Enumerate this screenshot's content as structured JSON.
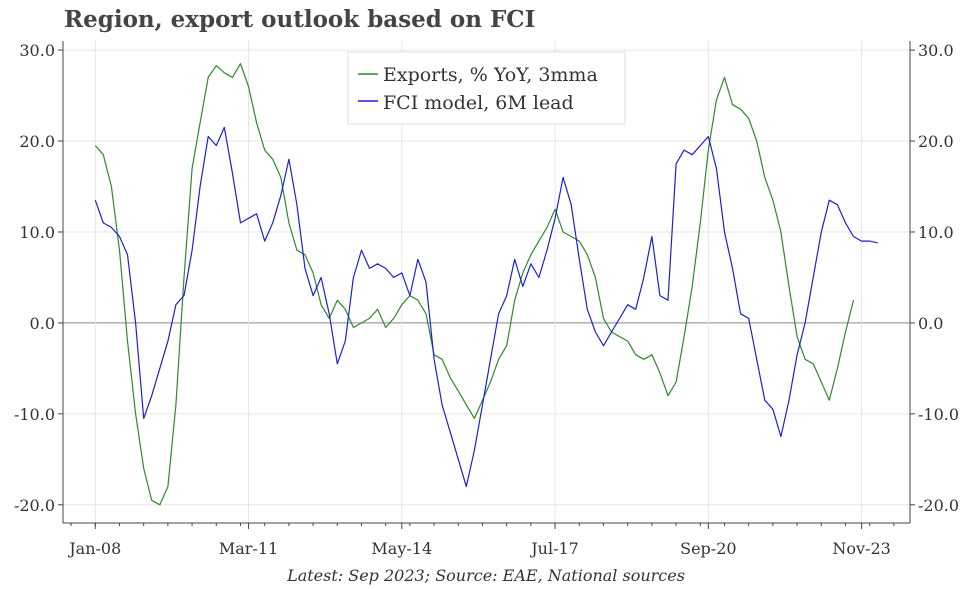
{
  "title": "Region, export outlook based on FCI",
  "footer": "Latest: Sep 2023; Source: EAE, National sources",
  "colors": {
    "exports": "#2e8b2e",
    "fci": "#1f1fd6",
    "grid": "#e6e6e6",
    "zero": "#888888"
  },
  "chart_data": {
    "type": "line",
    "title": "Region, export outlook based on FCI",
    "xlabel": "",
    "ylabel": "",
    "ylim": [
      -22,
      31
    ],
    "yticks": [
      30,
      20,
      10,
      0,
      -10,
      -20
    ],
    "ytick_labels": [
      "30.0",
      "20.0",
      "10.0",
      "0.0",
      "-10.0",
      "-20.0"
    ],
    "xticks": [
      "2008-01",
      "2011-03",
      "2014-05",
      "2017-07",
      "2020-09",
      "2023-11"
    ],
    "xtick_labels": [
      "Jan-08",
      "Mar-11",
      "May-14",
      "Jul-17",
      "Sep-20",
      "Nov-23"
    ],
    "xlim": [
      "2007-05",
      "2024-11"
    ],
    "grid": true,
    "legend": "top-center",
    "series": [
      {
        "name": "Exports, % YoY, 3mma",
        "color": "#2e8b2e",
        "points": [
          [
            "2008-01",
            19.5
          ],
          [
            "2008-03",
            18.5
          ],
          [
            "2008-05",
            15.0
          ],
          [
            "2008-07",
            8.0
          ],
          [
            "2008-09",
            -2.0
          ],
          [
            "2008-11",
            -10.0
          ],
          [
            "2009-01",
            -16.0
          ],
          [
            "2009-03",
            -19.5
          ],
          [
            "2009-05",
            -20.0
          ],
          [
            "2009-07",
            -18.0
          ],
          [
            "2009-09",
            -9.0
          ],
          [
            "2009-11",
            5.0
          ],
          [
            "2010-01",
            17.0
          ],
          [
            "2010-03",
            22.0
          ],
          [
            "2010-05",
            27.0
          ],
          [
            "2010-07",
            28.3
          ],
          [
            "2010-09",
            27.5
          ],
          [
            "2010-11",
            27.0
          ],
          [
            "2011-01",
            28.5
          ],
          [
            "2011-03",
            26.0
          ],
          [
            "2011-05",
            22.0
          ],
          [
            "2011-07",
            19.0
          ],
          [
            "2011-09",
            18.0
          ],
          [
            "2011-11",
            16.0
          ],
          [
            "2012-01",
            11.0
          ],
          [
            "2012-03",
            8.0
          ],
          [
            "2012-05",
            7.5
          ],
          [
            "2012-07",
            5.5
          ],
          [
            "2012-09",
            2.0
          ],
          [
            "2012-11",
            0.5
          ],
          [
            "2013-01",
            2.5
          ],
          [
            "2013-03",
            1.5
          ],
          [
            "2013-05",
            -0.5
          ],
          [
            "2013-07",
            0.0
          ],
          [
            "2013-09",
            0.5
          ],
          [
            "2013-11",
            1.5
          ],
          [
            "2014-01",
            -0.5
          ],
          [
            "2014-03",
            0.5
          ],
          [
            "2014-05",
            2.0
          ],
          [
            "2014-07",
            3.0
          ],
          [
            "2014-09",
            2.5
          ],
          [
            "2014-11",
            1.0
          ],
          [
            "2015-01",
            -3.5
          ],
          [
            "2015-03",
            -4.0
          ],
          [
            "2015-05",
            -6.0
          ],
          [
            "2015-07",
            -7.5
          ],
          [
            "2015-09",
            -9.0
          ],
          [
            "2015-11",
            -10.5
          ],
          [
            "2016-01",
            -8.5
          ],
          [
            "2016-03",
            -6.5
          ],
          [
            "2016-05",
            -4.0
          ],
          [
            "2016-07",
            -2.5
          ],
          [
            "2016-09",
            2.5
          ],
          [
            "2016-11",
            5.5
          ],
          [
            "2017-01",
            7.5
          ],
          [
            "2017-03",
            9.0
          ],
          [
            "2017-05",
            10.5
          ],
          [
            "2017-07",
            12.5
          ],
          [
            "2017-09",
            10.0
          ],
          [
            "2017-11",
            9.5
          ],
          [
            "2018-01",
            9.0
          ],
          [
            "2018-03",
            7.5
          ],
          [
            "2018-05",
            5.0
          ],
          [
            "2018-07",
            0.5
          ],
          [
            "2018-09",
            -1.0
          ],
          [
            "2018-11",
            -1.5
          ],
          [
            "2019-01",
            -2.0
          ],
          [
            "2019-03",
            -3.5
          ],
          [
            "2019-05",
            -4.0
          ],
          [
            "2019-07",
            -3.5
          ],
          [
            "2019-09",
            -5.5
          ],
          [
            "2019-11",
            -8.0
          ],
          [
            "2020-01",
            -6.5
          ],
          [
            "2020-03",
            -1.5
          ],
          [
            "2020-05",
            4.0
          ],
          [
            "2020-07",
            11.0
          ],
          [
            "2020-09",
            19.0
          ],
          [
            "2020-11",
            24.5
          ],
          [
            "2021-01",
            27.0
          ],
          [
            "2021-03",
            24.0
          ],
          [
            "2021-05",
            23.5
          ],
          [
            "2021-07",
            22.5
          ],
          [
            "2021-09",
            20.0
          ],
          [
            "2021-11",
            16.0
          ],
          [
            "2022-01",
            13.5
          ],
          [
            "2022-03",
            10.0
          ],
          [
            "2022-05",
            4.0
          ],
          [
            "2022-07",
            -1.5
          ],
          [
            "2022-09",
            -4.0
          ],
          [
            "2022-11",
            -4.5
          ],
          [
            "2023-01",
            -6.5
          ],
          [
            "2023-03",
            -8.5
          ],
          [
            "2023-05",
            -5.0
          ],
          [
            "2023-07",
            -1.0
          ],
          [
            "2023-09",
            2.5
          ]
        ]
      },
      {
        "name": "FCI model, 6M lead",
        "color": "#1f1fd6",
        "points": [
          [
            "2008-01",
            13.5
          ],
          [
            "2008-03",
            11.0
          ],
          [
            "2008-05",
            10.5
          ],
          [
            "2008-07",
            9.5
          ],
          [
            "2008-09",
            7.5
          ],
          [
            "2008-11",
            0.0
          ],
          [
            "2009-01",
            -10.5
          ],
          [
            "2009-03",
            -8.0
          ],
          [
            "2009-05",
            -5.0
          ],
          [
            "2009-07",
            -2.0
          ],
          [
            "2009-09",
            2.0
          ],
          [
            "2009-11",
            3.0
          ],
          [
            "2010-01",
            8.0
          ],
          [
            "2010-03",
            15.0
          ],
          [
            "2010-05",
            20.5
          ],
          [
            "2010-07",
            19.5
          ],
          [
            "2010-09",
            21.5
          ],
          [
            "2010-11",
            16.5
          ],
          [
            "2011-01",
            11.0
          ],
          [
            "2011-03",
            11.5
          ],
          [
            "2011-05",
            12.0
          ],
          [
            "2011-07",
            9.0
          ],
          [
            "2011-09",
            11.0
          ],
          [
            "2011-11",
            14.0
          ],
          [
            "2012-01",
            18.0
          ],
          [
            "2012-03",
            13.0
          ],
          [
            "2012-05",
            6.0
          ],
          [
            "2012-07",
            3.0
          ],
          [
            "2012-09",
            5.0
          ],
          [
            "2012-11",
            1.0
          ],
          [
            "2013-01",
            -4.5
          ],
          [
            "2013-03",
            -2.0
          ],
          [
            "2013-05",
            5.0
          ],
          [
            "2013-07",
            8.0
          ],
          [
            "2013-09",
            6.0
          ],
          [
            "2013-11",
            6.5
          ],
          [
            "2014-01",
            6.0
          ],
          [
            "2014-03",
            5.0
          ],
          [
            "2014-05",
            5.5
          ],
          [
            "2014-07",
            3.0
          ],
          [
            "2014-09",
            7.0
          ],
          [
            "2014-11",
            4.5
          ],
          [
            "2015-01",
            -4.0
          ],
          [
            "2015-03",
            -9.0
          ],
          [
            "2015-05",
            -12.0
          ],
          [
            "2015-07",
            -15.0
          ],
          [
            "2015-09",
            -18.0
          ],
          [
            "2015-11",
            -14.0
          ],
          [
            "2016-01",
            -9.0
          ],
          [
            "2016-03",
            -4.0
          ],
          [
            "2016-05",
            1.0
          ],
          [
            "2016-07",
            3.0
          ],
          [
            "2016-09",
            7.0
          ],
          [
            "2016-11",
            4.0
          ],
          [
            "2017-01",
            6.5
          ],
          [
            "2017-03",
            5.0
          ],
          [
            "2017-05",
            8.0
          ],
          [
            "2017-07",
            11.5
          ],
          [
            "2017-09",
            16.0
          ],
          [
            "2017-11",
            13.0
          ],
          [
            "2018-01",
            7.0
          ],
          [
            "2018-03",
            1.5
          ],
          [
            "2018-05",
            -1.0
          ],
          [
            "2018-07",
            -2.5
          ],
          [
            "2018-09",
            -1.0
          ],
          [
            "2018-11",
            0.5
          ],
          [
            "2019-01",
            2.0
          ],
          [
            "2019-03",
            1.5
          ],
          [
            "2019-05",
            5.0
          ],
          [
            "2019-07",
            9.5
          ],
          [
            "2019-09",
            3.0
          ],
          [
            "2019-11",
            2.5
          ],
          [
            "2020-01",
            17.5
          ],
          [
            "2020-03",
            19.0
          ],
          [
            "2020-05",
            18.5
          ],
          [
            "2020-07",
            19.5
          ],
          [
            "2020-09",
            20.5
          ],
          [
            "2020-11",
            17.0
          ],
          [
            "2021-01",
            10.0
          ],
          [
            "2021-03",
            6.0
          ],
          [
            "2021-05",
            1.0
          ],
          [
            "2021-07",
            0.5
          ],
          [
            "2021-09",
            -4.0
          ],
          [
            "2021-11",
            -8.5
          ],
          [
            "2022-01",
            -9.5
          ],
          [
            "2022-03",
            -12.5
          ],
          [
            "2022-05",
            -8.5
          ],
          [
            "2022-07",
            -3.5
          ],
          [
            "2022-09",
            0.0
          ],
          [
            "2022-11",
            5.0
          ],
          [
            "2023-01",
            10.0
          ],
          [
            "2023-03",
            13.5
          ],
          [
            "2023-05",
            13.0
          ],
          [
            "2023-07",
            11.0
          ],
          [
            "2023-09",
            9.5
          ],
          [
            "2023-11",
            9.0
          ],
          [
            "2024-01",
            9.0
          ],
          [
            "2024-03",
            8.8
          ]
        ]
      }
    ]
  }
}
